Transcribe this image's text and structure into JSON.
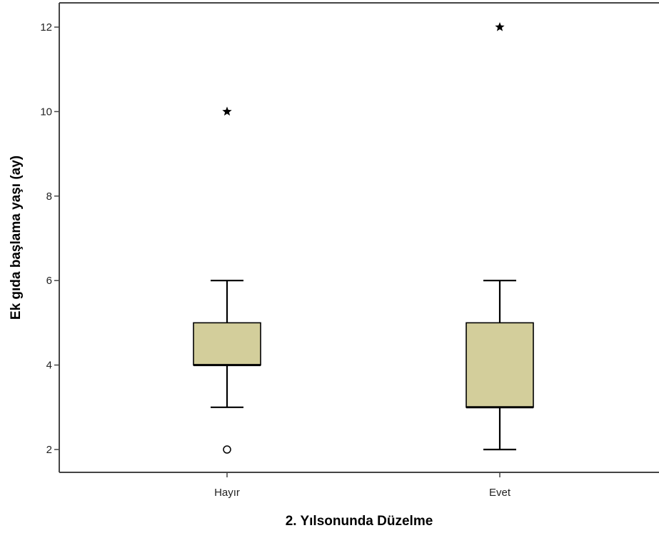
{
  "chart_data": {
    "type": "box",
    "xlabel": "2. Yılsonunda Düzelme",
    "ylabel": "Ek gıda başlama yaşı (ay)",
    "categories": [
      "Hayır",
      "Evet"
    ],
    "ylim": [
      1.5,
      12.6
    ],
    "yticks": [
      "2",
      "4",
      "6",
      "8",
      "10",
      "12"
    ],
    "grid": false,
    "boxes": [
      {
        "category": "Hayır",
        "whisker_low": 3,
        "q1": 4,
        "median": 4,
        "q3": 5,
        "whisker_high": 6,
        "outliers": [
          {
            "value": 2,
            "marker": "circle"
          },
          {
            "value": 10,
            "marker": "star"
          }
        ]
      },
      {
        "category": "Evet",
        "whisker_low": 2,
        "q1": 3,
        "median": 3,
        "q3": 5,
        "whisker_high": 6,
        "outliers": [
          {
            "value": 12,
            "marker": "star"
          }
        ]
      }
    ],
    "colors": {
      "box_fill": "#d3ce9b",
      "box_stroke": "#000000",
      "axis": "#444444",
      "outlier": "#000000"
    }
  }
}
